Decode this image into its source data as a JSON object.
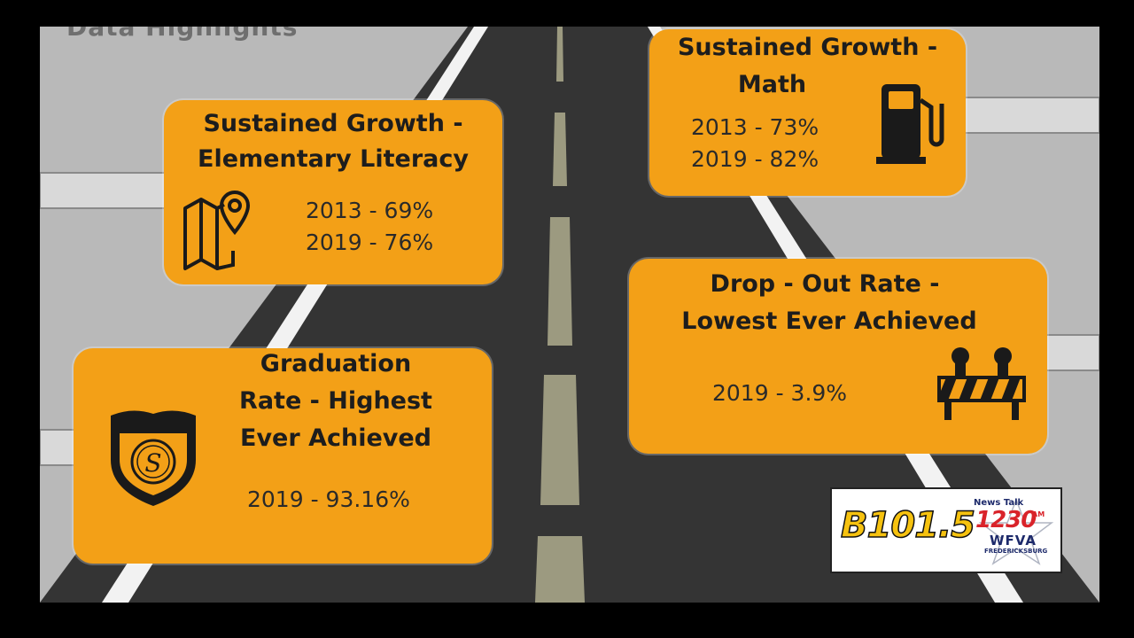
{
  "slide": {
    "heading": "Data Highlights",
    "cards": {
      "literacy": {
        "title_1": "Sustained Growth -",
        "title_2": "Elementary Literacy",
        "stat_1": "2013 - 69%",
        "stat_2": "2019 - 76%",
        "icon": "map-pin-icon"
      },
      "math": {
        "title_1": "Sustained Growth -",
        "title_2": "Math",
        "stat_1": "2013 - 73%",
        "stat_2": "2019 - 82%",
        "icon": "fuel-pump-icon"
      },
      "graduation": {
        "title_1": "Graduation",
        "title_2": "Rate - Highest",
        "title_3": "Ever Achieved",
        "stat_1": "2019 - 93.16%",
        "icon": "shield-icon"
      },
      "dropout": {
        "title_1": "Drop - Out Rate -",
        "title_2": "Lowest Ever Achieved",
        "stat_1": "2019 - 3.9%",
        "icon": "road-barrier-icon"
      }
    },
    "colors": {
      "card": "#f3a017",
      "road": "#3a3a3a",
      "background": "#b9b9b9"
    }
  },
  "broadcast_logo": {
    "station_1": "B101.5",
    "news_talk": "News Talk",
    "frequency": "1230",
    "band": "AM",
    "call_sign": "WFVA",
    "city": "FREDERICKSBURG"
  }
}
